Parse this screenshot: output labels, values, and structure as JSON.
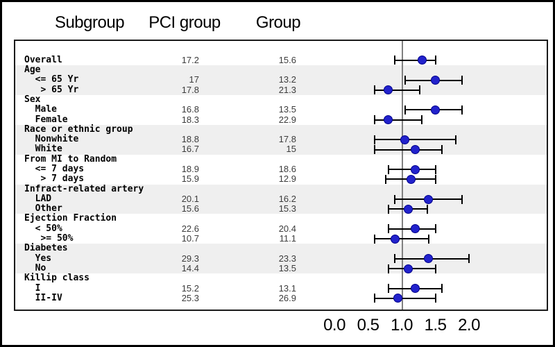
{
  "header": {
    "columns": [
      {
        "label": "Subgroup"
      },
      {
        "label": "PCI group"
      },
      {
        "label": "Group"
      }
    ]
  },
  "colors": {
    "dot_fill": "#2222cc",
    "dot_edge": "#00008b",
    "band": "#efefef",
    "ref_line": "#808080",
    "ci_line": "#000000"
  },
  "chart_data": {
    "type": "scatter",
    "variant": "forest-plot",
    "title": "",
    "xlabel": "",
    "x_axis": {
      "range": [
        0.0,
        2.2
      ],
      "ref_line": 1.0,
      "ticks": [
        {
          "label": "0.0",
          "value": 0.0
        },
        {
          "label": "0.5",
          "value": 0.5
        },
        {
          "label": "1.0",
          "value": 1.0
        },
        {
          "label": "1.5",
          "value": 1.5
        },
        {
          "label": "2.0",
          "value": 2.0
        }
      ]
    },
    "columns": [
      "Subgroup",
      "PCI group",
      "Group"
    ],
    "rows": [
      {
        "label": "Overall",
        "pci": "17.2",
        "group": "15.6",
        "est": 1.3,
        "lo": 0.9,
        "hi": 1.5,
        "band": false
      },
      {
        "label": "Age",
        "band": true
      },
      {
        "label": "  <= 65 Yr",
        "pci": "17",
        "group": "13.2",
        "est": 1.5,
        "lo": 1.05,
        "hi": 1.9,
        "band": true
      },
      {
        "label": "   > 65 Yr",
        "pci": "17.8",
        "group": "21.3",
        "est": 0.8,
        "lo": 0.6,
        "hi": 1.27,
        "band": true
      },
      {
        "label": "Sex",
        "band": false
      },
      {
        "label": "  Male",
        "pci": "16.8",
        "group": "13.5",
        "est": 1.5,
        "lo": 1.05,
        "hi": 1.9,
        "band": false
      },
      {
        "label": "  Female",
        "pci": "18.3",
        "group": "22.9",
        "est": 0.8,
        "lo": 0.6,
        "hi": 1.3,
        "band": false
      },
      {
        "label": "Race or ethnic group",
        "band": true
      },
      {
        "label": "  Nonwhite",
        "pci": "18.8",
        "group": "17.8",
        "est": 1.05,
        "lo": 0.6,
        "hi": 1.8,
        "band": true
      },
      {
        "label": "  White",
        "pci": "16.7",
        "group": "15",
        "est": 1.2,
        "lo": 0.6,
        "hi": 1.6,
        "band": true
      },
      {
        "label": "From MI to Random",
        "band": false
      },
      {
        "label": "  <= 7 days",
        "pci": "18.9",
        "group": "18.6",
        "est": 1.2,
        "lo": 0.8,
        "hi": 1.5,
        "band": false
      },
      {
        "label": "   > 7 days",
        "pci": "15.9",
        "group": "12.9",
        "est": 1.14,
        "lo": 0.76,
        "hi": 1.5,
        "band": false
      },
      {
        "label": "Infract-related artery",
        "band": true
      },
      {
        "label": "  LAD",
        "pci": "20.1",
        "group": "16.2",
        "est": 1.4,
        "lo": 0.9,
        "hi": 1.9,
        "band": true
      },
      {
        "label": "  Other",
        "pci": "15.6",
        "group": "15.3",
        "est": 1.1,
        "lo": 0.8,
        "hi": 1.38,
        "band": true
      },
      {
        "label": "Ejection Fraction",
        "band": false
      },
      {
        "label": "  < 50%",
        "pci": "22.6",
        "group": "20.4",
        "est": 1.2,
        "lo": 0.8,
        "hi": 1.5,
        "band": false
      },
      {
        "label": "   >= 50%",
        "pci": "10.7",
        "group": "11.1",
        "est": 0.9,
        "lo": 0.6,
        "hi": 1.4,
        "band": false
      },
      {
        "label": "Diabetes",
        "band": true
      },
      {
        "label": "  Yes",
        "pci": "29.3",
        "group": "23.3",
        "est": 1.4,
        "lo": 0.9,
        "hi": 2.0,
        "band": true
      },
      {
        "label": "  No",
        "pci": "14.4",
        "group": "13.5",
        "est": 1.1,
        "lo": 0.8,
        "hi": 1.5,
        "band": true
      },
      {
        "label": "Killip class",
        "band": false
      },
      {
        "label": "  I",
        "pci": "15.2",
        "group": "13.1",
        "est": 1.2,
        "lo": 0.8,
        "hi": 1.6,
        "band": false
      },
      {
        "label": "  II-IV",
        "pci": "25.3",
        "group": "26.9",
        "est": 0.94,
        "lo": 0.6,
        "hi": 1.5,
        "band": false
      }
    ]
  }
}
